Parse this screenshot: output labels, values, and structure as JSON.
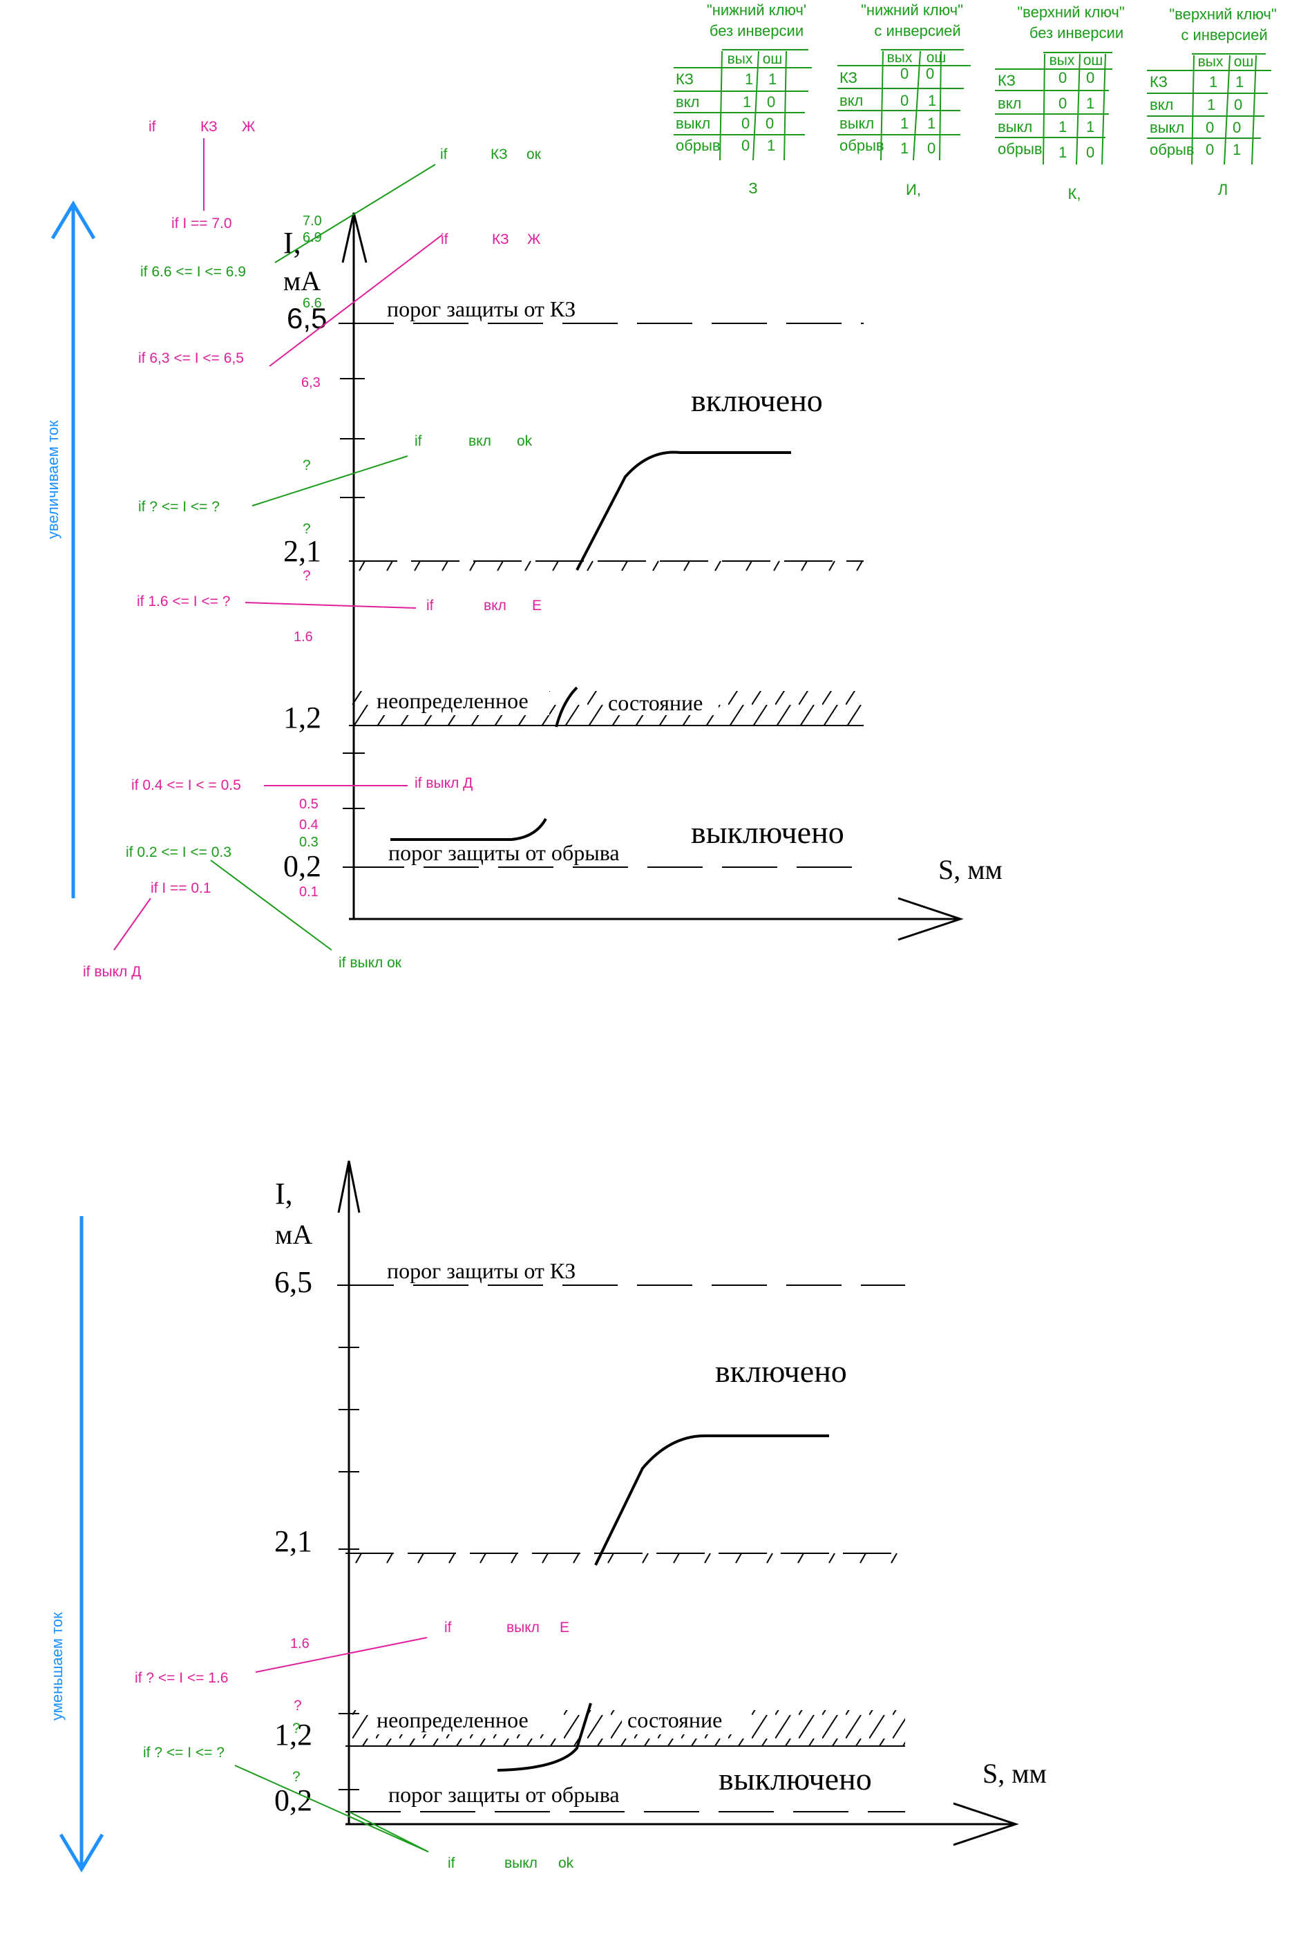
{
  "colors": {
    "annotation_green": "#1a9c1a",
    "annotation_magenta": "#e0209b",
    "arrow_blue": "#1e90ff",
    "ink": "#000000"
  },
  "tables": [
    {
      "title1": "\"нижний ключ'",
      "title2": "без инверсии",
      "col1": "вых",
      "col2": "ош",
      "rows": [
        {
          "label": "КЗ",
          "v1": "1",
          "v2": "1"
        },
        {
          "label": "вкл",
          "v1": "1",
          "v2": "0"
        },
        {
          "label": "выкл",
          "v1": "0",
          "v2": "0"
        },
        {
          "label": "обрыв",
          "v1": "0",
          "v2": "1"
        }
      ],
      "letter": "З"
    },
    {
      "title1": "\"нижний ключ\"",
      "title2": "с инверсией",
      "col1": "вых",
      "col2": "ош",
      "rows": [
        {
          "label": "КЗ",
          "v1": "0",
          "v2": "0"
        },
        {
          "label": "вкл",
          "v1": "0",
          "v2": "1"
        },
        {
          "label": "выкл",
          "v1": "1",
          "v2": "1"
        },
        {
          "label": "обрыв",
          "v1": "1",
          "v2": "0"
        }
      ],
      "letter": "И,"
    },
    {
      "title1": "\"верхний ключ\"",
      "title2": "без инверсии",
      "col1": "вых",
      "col2": "ош",
      "rows": [
        {
          "label": "КЗ",
          "v1": "0",
          "v2": "0"
        },
        {
          "label": "вкл",
          "v1": "0",
          "v2": "1"
        },
        {
          "label": "выкл",
          "v1": "1",
          "v2": "1"
        },
        {
          "label": "обрыв",
          "v1": "1",
          "v2": "0"
        }
      ],
      "letter": "К,"
    },
    {
      "title1": "\"верхний ключ\"",
      "title2": "с инверсией",
      "col1": "вых",
      "col2": "ош",
      "rows": [
        {
          "label": "КЗ",
          "v1": "1",
          "v2": "1"
        },
        {
          "label": "вкл",
          "v1": "1",
          "v2": "0"
        },
        {
          "label": "выкл",
          "v1": "0",
          "v2": "0"
        },
        {
          "label": "обрыв",
          "v1": "0",
          "v2": "1"
        }
      ],
      "letter": "Л"
    }
  ],
  "top": {
    "direction_label": "увеличиваем ток",
    "y_axis": "I,",
    "y_unit": "мА",
    "x_axis": "S, мм",
    "tick_65": "6,5",
    "tick_21": "2,1",
    "tick_12": "1,2",
    "tick_02": "0,2",
    "kz_threshold": "порог защиты от КЗ",
    "on_state": "включено",
    "undefined_state_a": "неопределенное",
    "undefined_state_b": "состояние",
    "off_state": "выключено",
    "break_threshold": "порог защиты от обрыва",
    "ann": {
      "if_kz_zh_1": {
        "a": "if",
        "b": "КЗ",
        "c": "Ж"
      },
      "if_i_70": "if I == 7.0",
      "if_kz_ok": {
        "a": "if",
        "b": "КЗ",
        "c": "ок"
      },
      "if_66_69": "if   6.6 <= I <= 6.9",
      "if_kz_zh_2": {
        "a": "if",
        "b": "КЗ",
        "c": "Ж"
      },
      "if_63_65": "if  6,3  <=  I <= 6,5",
      "if_on_ok": {
        "a": "if",
        "b": "вкл",
        "c": "ok"
      },
      "if_q_q": "if ? <= I <= ?",
      "if_16_q": "if 1.6 <= I <= ?",
      "if_on_e": {
        "a": "if",
        "b": "вкл",
        "c": "Е"
      },
      "if_04_05": "if 0.4 <= I < = 0.5",
      "if_off_d_1": "if выкл Д",
      "if_02_03": "if 0.2 <= I <= 0.3",
      "if_i_01": "if I == 0.1",
      "if_off_d_2": "if выкл Д",
      "if_off_ok": "if выкл  ок"
    },
    "vals": {
      "v70": "7.0",
      "v69": "6.9",
      "v66": "6.6",
      "v63": "6,3",
      "q1": "?",
      "q2": "?",
      "q3": "?",
      "v16": "1.6",
      "v05": "0.5",
      "v04": "0.4",
      "v03": "0.3",
      "v01": "0.1"
    }
  },
  "bottom": {
    "direction_label": "уменьшаем ток",
    "y_axis": "I,",
    "y_unit": "мА",
    "x_axis": "S, мм",
    "tick_65": "6,5",
    "tick_21": "2,1",
    "tick_12": "1,2",
    "tick_02": "0,2",
    "kz_threshold": "порог защиты от КЗ",
    "on_state": "включено",
    "undefined_state_a": "неопределенное",
    "undefined_state_b": "состояние",
    "off_state": "выключено",
    "break_threshold": "порог защиты от обрыва",
    "ann": {
      "v16": "1.6",
      "if_off_e": {
        "a": "if",
        "b": "выкл",
        "c": "Е"
      },
      "if_q_16": "if  ? <= I <= 1.6",
      "q1": "?",
      "q2": "?",
      "q3": "?",
      "if_q_q": "if ? <= I <= ?",
      "if_off_ok": {
        "a": "if",
        "b": "выкл",
        "c": "ok"
      }
    }
  }
}
